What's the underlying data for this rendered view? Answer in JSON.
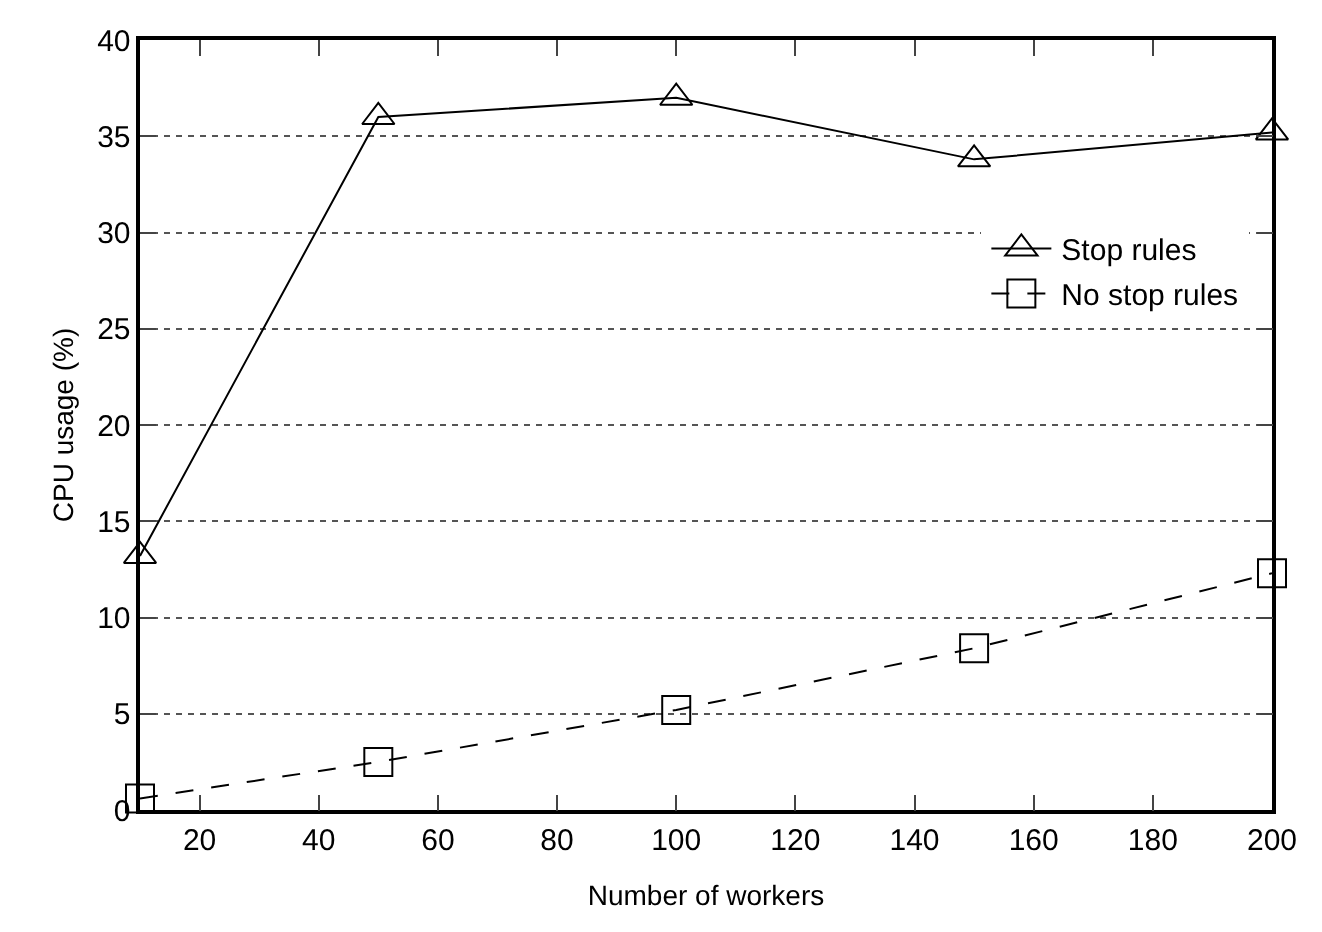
{
  "chart_data": {
    "type": "line",
    "xlabel": "Number of workers",
    "ylabel": "CPU usage (%)",
    "x": [
      10,
      50,
      100,
      150,
      200
    ],
    "series": [
      {
        "name": "Stop rules",
        "color": "#000000",
        "values": [
          13.2,
          36.0,
          37.0,
          33.8,
          35.2
        ],
        "marker": "triangle",
        "line_style": "solid"
      },
      {
        "name": "No stop rules",
        "color": "#000000",
        "values": [
          0.6,
          2.5,
          5.2,
          8.4,
          12.3
        ],
        "marker": "square",
        "line_style": "dashed"
      }
    ],
    "xlim": [
      10,
      200
    ],
    "xticks": [
      20,
      40,
      60,
      80,
      100,
      120,
      140,
      160,
      180,
      200
    ],
    "ylim": [
      0,
      40
    ],
    "yticks": [
      0,
      5,
      10,
      15,
      20,
      25,
      30,
      35,
      40
    ],
    "grid": "y",
    "legend": "right"
  }
}
